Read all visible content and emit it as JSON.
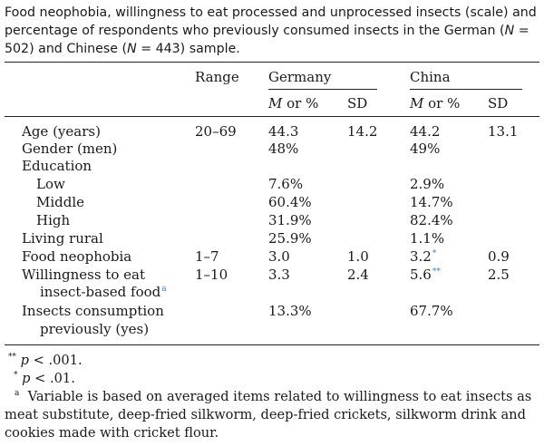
{
  "caption": {
    "text1": "Food neophobia, willingness to eat processed and unprocessed insects (scale) and percentage of respondents who previously consumed insects in the German (",
    "n_symbol_1": "N",
    "text2": " = 502) and Chinese (",
    "n_symbol_2": "N",
    "text3": " = 443) sample."
  },
  "header": {
    "range": "Range",
    "germany": "Germany",
    "china": "China",
    "m_label": "M",
    "or_pct": " or %",
    "sd": "SD"
  },
  "rows": [
    {
      "label": "Age (years)",
      "range": "20–69",
      "de_m": "44.3",
      "de_sd": "14.2",
      "cn_m": "44.2",
      "cn_sd": "13.1"
    },
    {
      "label": "Gender (men)",
      "de_m": "48%",
      "cn_m": "49%"
    },
    {
      "label": "Education"
    },
    {
      "label": "Low",
      "de_m": "7.6%",
      "cn_m": "2.9%"
    },
    {
      "label": "Middle",
      "de_m": "60.4%",
      "cn_m": "14.7%"
    },
    {
      "label": "High",
      "de_m": "31.9%",
      "cn_m": "82.4%"
    },
    {
      "label": "Living rural",
      "de_m": "25.9%",
      "cn_m": "1.1%"
    },
    {
      "label": "Food neophobia",
      "range": "1–7",
      "de_m": "3.0",
      "de_sd": "1.0",
      "cn_m": "3.2",
      "cn_m_sup": "*",
      "cn_sd": "0.9"
    },
    {
      "label": "Willingness to eat",
      "label2": "insect-based food",
      "label2_sup": "a",
      "range": "1–10",
      "de_m": "3.3",
      "de_sd": "2.4",
      "cn_m": "5.6",
      "cn_m_sup": "**",
      "cn_sd": "2.5"
    },
    {
      "label": "Insects consumption",
      "label2": "previously (yes)",
      "de_m": "13.3%",
      "cn_m": "67.7%"
    }
  ],
  "footnotes": {
    "f1_mark": "**",
    "f1_p": "p",
    "f1_text": " < .001.",
    "f2_mark": "*",
    "f2_p": "p",
    "f2_text": " < .01.",
    "f3_mark": "a",
    "f3_text": "Variable is based on averaged items related to willingness to eat insects as meat substitute, deep-fried silkworm, deep-fried crickets, silkworm drink and cookies made with cricket flour."
  },
  "colors": {
    "text": "#1a1a1a",
    "rule": "#222222",
    "link_sup": "#3a7fc4"
  }
}
